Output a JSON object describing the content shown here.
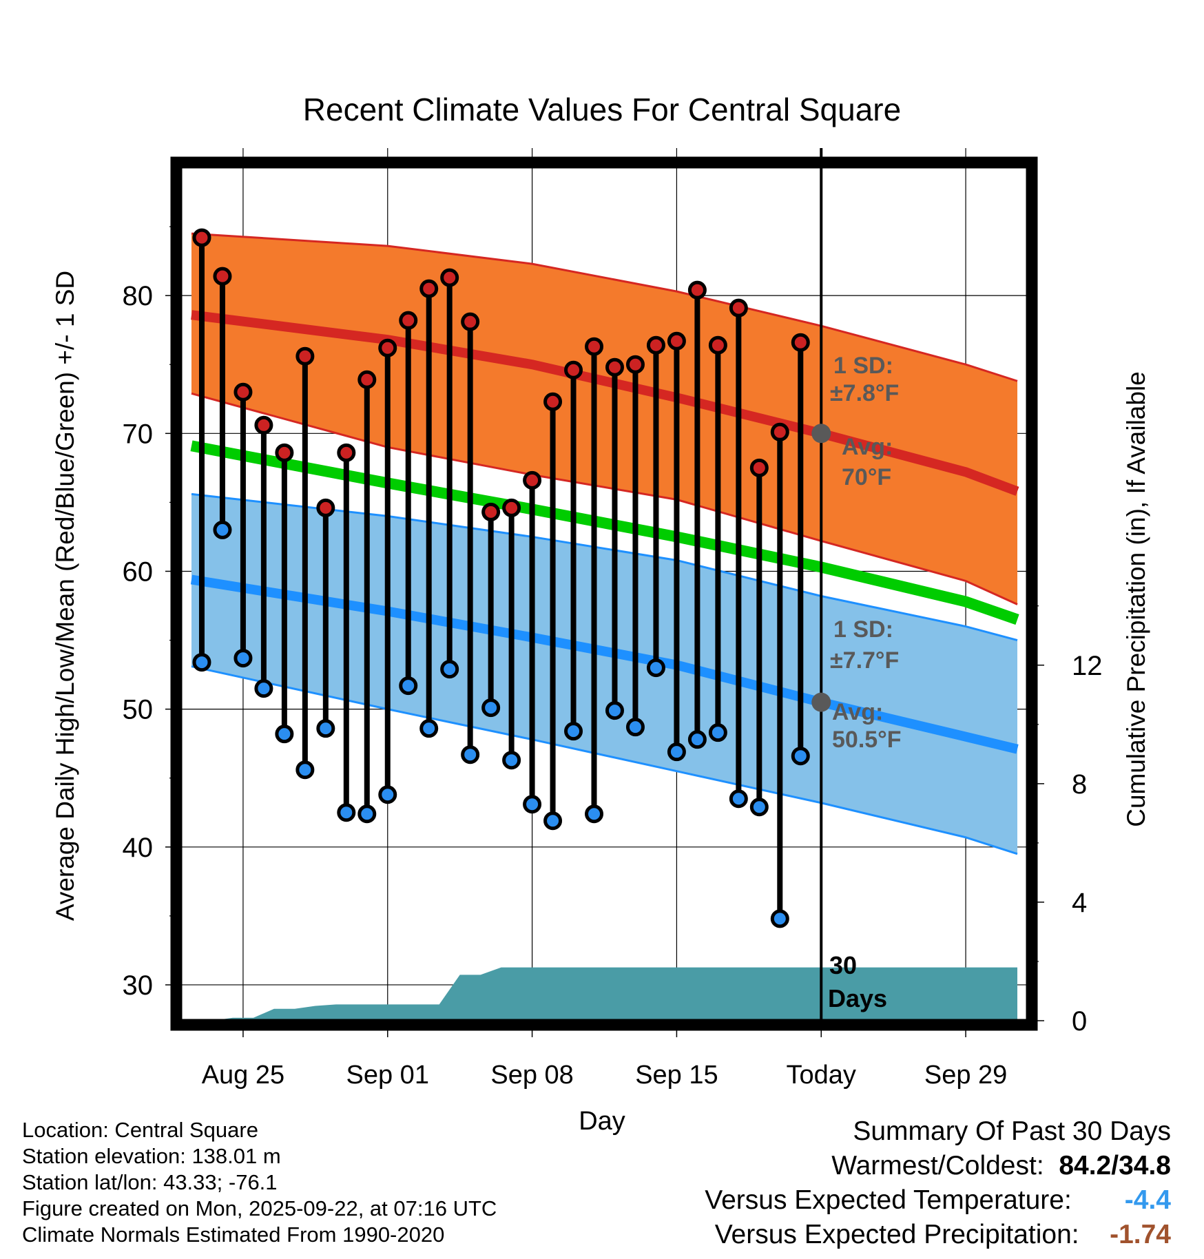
{
  "colors": {
    "high_band": "#f47a2c",
    "high_line": "#d52722",
    "low_band": "#85c1e9",
    "low_line": "#1e90ff",
    "mean_line": "#00cc00",
    "precip": "#4a9ca6",
    "marker_high": "#cc2222",
    "marker_low": "#2b8ef0",
    "anno_gray": "#595959",
    "temp_anomaly": "#3399ee",
    "precip_anomaly": "#a0522d"
  },
  "chart_data": {
    "type": "line",
    "title": "Recent Climate Values For Central Square",
    "xlabel": "Day",
    "ylabel": "Average Daily High/Low/Mean (Red/Blue/Green) +/- 1 SD",
    "y2label": "Cumulative Precipitation (in), If Available",
    "xlim": [
      -3,
      38
    ],
    "ylim": [
      27.4,
      89.3
    ],
    "y2lim": [
      0,
      28.8
    ],
    "x_ticks": [
      0,
      7,
      14,
      21,
      28,
      35
    ],
    "x_tick_labels": [
      "Aug 25",
      "Sep 01",
      "Sep 08",
      "Sep 15",
      "Today",
      "Sep 29"
    ],
    "y_ticks": [
      30,
      40,
      50,
      60,
      70,
      80
    ],
    "y_tick_labels": [
      "30",
      "40",
      "50",
      "60",
      "70",
      "80"
    ],
    "y2_ticks": [
      0,
      4,
      8,
      12
    ],
    "y2_tick_labels": [
      "0",
      "4",
      "8",
      "12"
    ],
    "grid": true,
    "normals": {
      "x": [
        -2.5,
        7,
        14,
        21,
        28,
        35,
        37.5
      ],
      "high_mean": [
        78.6,
        76.8,
        75.0,
        72.6,
        70.0,
        67.2,
        65.8
      ],
      "high_upper": [
        84.5,
        83.6,
        82.3,
        80.3,
        77.8,
        75.0,
        73.8
      ],
      "high_lower": [
        72.9,
        69.0,
        67.0,
        65.2,
        62.2,
        59.3,
        57.6
      ],
      "mean": [
        69.1,
        66.4,
        64.5,
        62.5,
        60.3,
        57.8,
        56.5
      ],
      "low_mean": [
        59.4,
        57.1,
        55.2,
        53.2,
        50.5,
        48.0,
        47.1
      ],
      "low_upper": [
        65.6,
        64.0,
        62.5,
        60.8,
        58.2,
        56.0,
        55.0
      ],
      "low_lower": [
        53.1,
        50.0,
        47.8,
        45.5,
        43.2,
        40.7,
        39.5
      ]
    },
    "days_x": [
      -2,
      -1,
      0,
      1,
      2,
      3,
      4,
      5,
      6,
      7,
      8,
      9,
      10,
      11,
      12,
      13,
      14,
      15,
      16,
      17,
      18,
      19,
      20,
      21,
      22,
      23,
      24,
      25,
      26,
      27
    ],
    "highs": [
      84.2,
      81.4,
      73.0,
      70.6,
      68.6,
      75.6,
      64.6,
      68.6,
      73.9,
      76.2,
      78.2,
      80.5,
      81.3,
      78.1,
      64.3,
      64.6,
      66.6,
      72.3,
      74.6,
      76.3,
      74.8,
      75.0,
      76.4,
      76.7,
      80.4,
      76.4,
      79.1,
      67.5,
      70.1,
      76.6
    ],
    "lows": [
      53.4,
      63.0,
      53.7,
      51.5,
      48.2,
      45.6,
      48.6,
      42.5,
      42.4,
      43.8,
      51.7,
      48.6,
      52.9,
      46.7,
      50.1,
      46.3,
      43.1,
      41.9,
      48.4,
      42.4,
      49.9,
      48.7,
      53.0,
      46.9,
      47.8,
      48.3,
      43.5,
      42.9,
      34.8,
      46.6
    ],
    "precip_x": [
      -2.5,
      -1.5,
      -0.5,
      0.5,
      1.5,
      2.5,
      3.5,
      4.5,
      5.5,
      6.5,
      7.5,
      8.5,
      9.5,
      10.5,
      11.5,
      12.5,
      13.5,
      14.5,
      37.5
    ],
    "precip_cum": [
      0,
      0,
      0.1,
      0.1,
      0.4,
      0.4,
      0.5,
      0.55,
      0.55,
      0.55,
      0.55,
      0.55,
      0.55,
      1.55,
      1.55,
      1.8,
      1.8,
      1.8,
      1.8
    ],
    "today_x": 28,
    "today_markers": {
      "high_avg": 70.0,
      "low_avg": 50.5
    },
    "annotations": {
      "high_sd_label": "1 SD:",
      "high_sd_value": "±7.8°F",
      "high_avg_label": "Avg:",
      "high_avg_value": "70°F",
      "low_sd_label": "1 SD:",
      "low_sd_value": "±7.7°F",
      "low_avg_label": "Avg:",
      "low_avg_value": "50.5°F",
      "window_count": "30",
      "window_unit": "Days"
    }
  },
  "footer": {
    "location": "Location: Central Square",
    "elevation": "Station elevation: 138.01 m",
    "latlon": "Station lat/lon: 43.33; -76.1",
    "created": "Figure created on Mon, 2025-09-22, at 07:16 UTC",
    "normals": "Climate Normals Estimated From 1990-2020"
  },
  "summary": {
    "heading": "Summary Of Past 30 Days",
    "warm_cold_label": "Warmest/Coldest:",
    "warm_cold_value": "84.2/34.8",
    "temp_label": "Versus Expected Temperature:",
    "temp_value": "-4.4",
    "precip_label": "Versus Expected Precipitation:",
    "precip_value": "-1.74"
  }
}
